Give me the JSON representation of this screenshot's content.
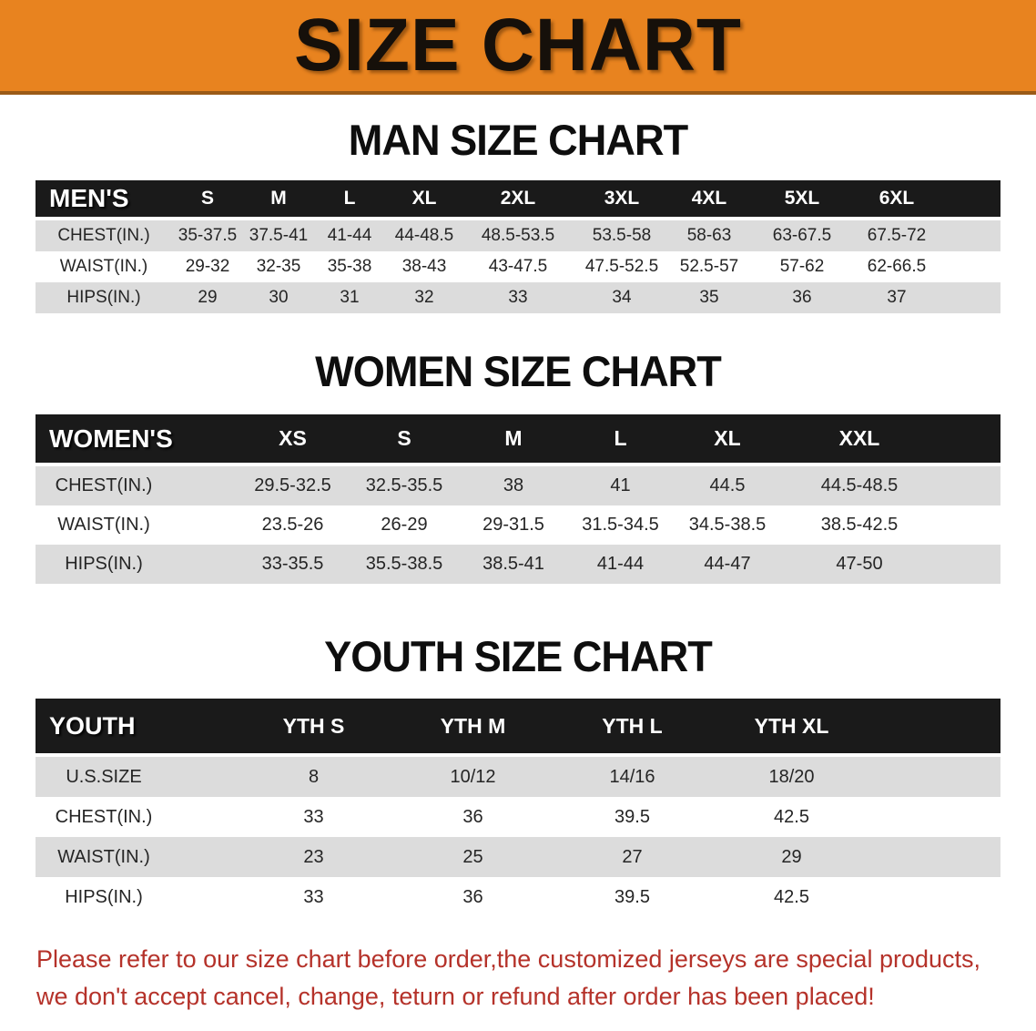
{
  "banner": {
    "title": "SIZE CHART",
    "bg_color": "#e8831f",
    "text_color": "#16100a"
  },
  "sections": [
    {
      "heading": "MAN SIZE CHART",
      "label": "MEN'S",
      "columns": [
        "S",
        "M",
        "L",
        "XL",
        "2XL",
        "3XL",
        "4XL",
        "5XL",
        "6XL"
      ],
      "rows": [
        {
          "label": "CHEST(IN.)",
          "values": [
            "35-37.5",
            "37.5-41",
            "41-44",
            "44-48.5",
            "48.5-53.5",
            "53.5-58",
            "58-63",
            "63-67.5",
            "67.5-72"
          ]
        },
        {
          "label": "WAIST(IN.)",
          "values": [
            "29-32",
            "32-35",
            "35-38",
            "38-43",
            "43-47.5",
            "47.5-52.5",
            "52.5-57",
            "57-62",
            "62-66.5"
          ]
        },
        {
          "label": "HIPS(IN.)",
          "values": [
            "29",
            "30",
            "31",
            "32",
            "33",
            "34",
            "35",
            "36",
            "37"
          ]
        }
      ]
    },
    {
      "heading": "WOMEN SIZE CHART",
      "label": "WOMEN'S",
      "columns": [
        "XS",
        "S",
        "M",
        "L",
        "XL",
        "XXL"
      ],
      "rows": [
        {
          "label": "CHEST(IN.)",
          "values": [
            "29.5-32.5",
            "32.5-35.5",
            "38",
            "41",
            "44.5",
            "44.5-48.5"
          ]
        },
        {
          "label": "WAIST(IN.)",
          "values": [
            "23.5-26",
            "26-29",
            "29-31.5",
            "31.5-34.5",
            "34.5-38.5",
            "38.5-42.5"
          ]
        },
        {
          "label": "HIPS(IN.)",
          "values": [
            "33-35.5",
            "35.5-38.5",
            "38.5-41",
            "41-44",
            "44-47",
            "47-50"
          ]
        }
      ]
    },
    {
      "heading": "YOUTH SIZE CHART",
      "label": "YOUTH",
      "columns": [
        "YTH S",
        "YTH M",
        "YTH L",
        "YTH XL"
      ],
      "rows": [
        {
          "label": "U.S.SIZE",
          "values": [
            "8",
            "10/12",
            "14/16",
            "18/20"
          ]
        },
        {
          "label": "CHEST(IN.)",
          "values": [
            "33",
            "36",
            "39.5",
            "42.5"
          ]
        },
        {
          "label": "WAIST(IN.)",
          "values": [
            "23",
            "25",
            "27",
            "29"
          ]
        },
        {
          "label": "HIPS(IN.)",
          "values": [
            "33",
            "36",
            "39.5",
            "42.5"
          ]
        }
      ]
    }
  ],
  "disclaimer": {
    "line1": "Please refer to our size chart before order,the customized jerseys are special products,",
    "line2": "we don't accept cancel, change, teturn or refund after order has been placed!",
    "color": "#b5322a"
  }
}
